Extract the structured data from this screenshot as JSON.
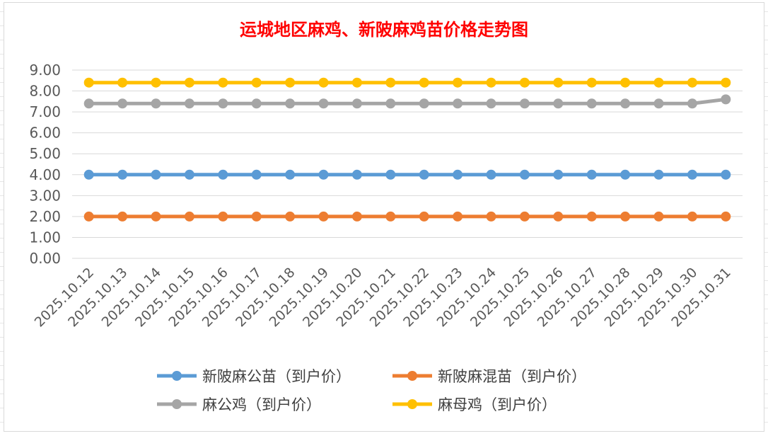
{
  "chart_data": {
    "type": "line",
    "title": "运城地区麻鸡、新陂麻鸡苗价格走势图",
    "xlabel": "",
    "ylabel": "",
    "ylim": [
      0,
      9
    ],
    "yticks": [
      "0.00",
      "1.00",
      "2.00",
      "3.00",
      "4.00",
      "5.00",
      "6.00",
      "7.00",
      "8.00",
      "9.00"
    ],
    "grid": true,
    "legend_position": "bottom",
    "categories": [
      "2025.10.12",
      "2025.10.13",
      "2025.10.14",
      "2025.10.15",
      "2025.10.16",
      "2025.10.17",
      "2025.10.18",
      "2025.10.19",
      "2025.10.20",
      "2025.10.21",
      "2025.10.22",
      "2025.10.23",
      "2025.10.24",
      "2025.10.25",
      "2025.10.26",
      "2025.10.27",
      "2025.10.28",
      "2025.10.29",
      "2025.10.30",
      "2025.10.31"
    ],
    "series": [
      {
        "name": "新陂麻公苗（到户价）",
        "color": "#5b9bd5",
        "values": [
          4,
          4,
          4,
          4,
          4,
          4,
          4,
          4,
          4,
          4,
          4,
          4,
          4,
          4,
          4,
          4,
          4,
          4,
          4,
          4
        ]
      },
      {
        "name": "新陂麻混苗（到户价）",
        "color": "#ed7d31",
        "values": [
          2,
          2,
          2,
          2,
          2,
          2,
          2,
          2,
          2,
          2,
          2,
          2,
          2,
          2,
          2,
          2,
          2,
          2,
          2,
          2
        ]
      },
      {
        "name": "麻公鸡（到户价）",
        "color": "#a5a5a5",
        "values": [
          7.4,
          7.4,
          7.4,
          7.4,
          7.4,
          7.4,
          7.4,
          7.4,
          7.4,
          7.4,
          7.4,
          7.4,
          7.4,
          7.4,
          7.4,
          7.4,
          7.4,
          7.4,
          7.4,
          7.6
        ]
      },
      {
        "name": "麻母鸡（到户价）",
        "color": "#ffc000",
        "values": [
          8.4,
          8.4,
          8.4,
          8.4,
          8.4,
          8.4,
          8.4,
          8.4,
          8.4,
          8.4,
          8.4,
          8.4,
          8.4,
          8.4,
          8.4,
          8.4,
          8.4,
          8.4,
          8.4,
          8.4
        ]
      }
    ]
  }
}
